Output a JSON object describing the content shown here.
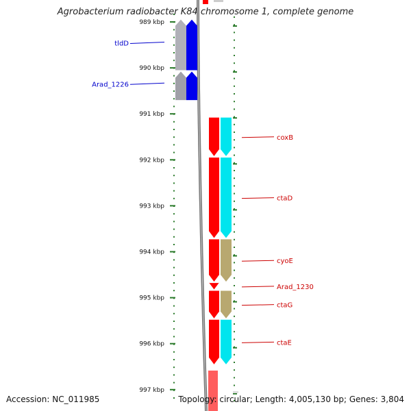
{
  "title": "Agrobacterium radiobacter K84 chromosome 1, complete genome",
  "footer": {
    "accession": "Accession: NC_011985",
    "summary": "Topology: circular; Length: 4,005,130 bp; Genes: 3,804"
  },
  "ruler_labels": [
    "989 kbp",
    "990 kbp",
    "991 kbp",
    "992 kbp",
    "993 kbp",
    "994 kbp",
    "995 kbp",
    "996 kbp",
    "997 kbp"
  ],
  "genes": [
    {
      "name": "tldD",
      "strand": "left",
      "color": "#0000cc",
      "fill": "#0000ee",
      "cog_fill": "#b0b0b8",
      "start_kbp": 988.95,
      "end_kbp": 990.05
    },
    {
      "name": "Arad_1226",
      "strand": "left",
      "color": "#0000cc",
      "fill": "#0000ee",
      "cog_fill": "#a0a0a8",
      "start_kbp": 990.08,
      "end_kbp": 990.7
    },
    {
      "name": "coxB",
      "strand": "right",
      "color": "#cc0000",
      "fill": "#ff0000",
      "cog_fill": "#00e5ee",
      "start_kbp": 991.08,
      "end_kbp": 991.92
    },
    {
      "name": "ctaD",
      "strand": "right",
      "color": "#cc0000",
      "fill": "#ff0000",
      "cog_fill": "#00e5ee",
      "start_kbp": 991.95,
      "end_kbp": 993.7
    },
    {
      "name": "cyoE",
      "strand": "right",
      "color": "#cc0000",
      "fill": "#ff0000",
      "cog_fill": "#b8a870",
      "start_kbp": 993.73,
      "end_kbp": 994.65
    },
    {
      "name": "Arad_1230",
      "strand": "right",
      "color": "#cc0000",
      "fill": "#ff0000",
      "cog_fill": null,
      "start_kbp": 994.68,
      "end_kbp": 994.82
    },
    {
      "name": "ctaG",
      "strand": "right",
      "color": "#cc0000",
      "fill": "#ff0000",
      "cog_fill": "#b8a870",
      "start_kbp": 994.85,
      "end_kbp": 995.45
    },
    {
      "name": "ctaE",
      "strand": "right",
      "color": "#cc0000",
      "fill": "#ff0000",
      "cog_fill": "#00e5ee",
      "start_kbp": 995.48,
      "end_kbp": 996.45
    }
  ]
}
